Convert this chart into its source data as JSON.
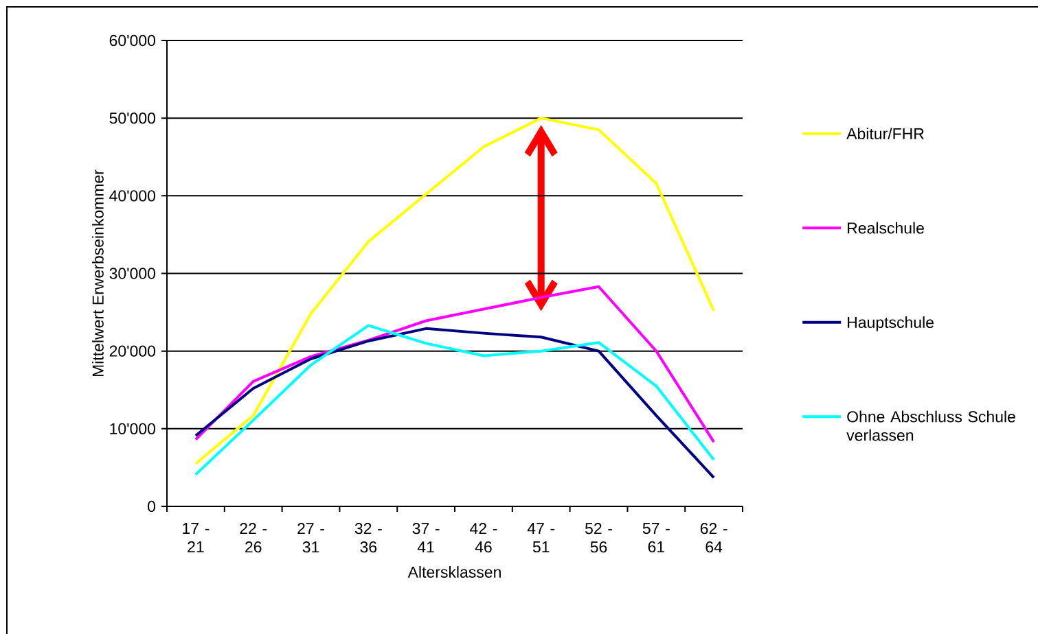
{
  "chart_data": {
    "type": "line",
    "xlabel": "Altersklassen",
    "ylabel": "Mittelwert Erwerbseinkommer",
    "categories": [
      "17 - 21",
      "22 - 26",
      "27 - 31",
      "32 - 36",
      "37 - 41",
      "42 - 46",
      "47 - 51",
      "52 - 56",
      "57 - 61",
      "62 - 64"
    ],
    "series": [
      {
        "name": "Abitur/FHR",
        "color": "#ffff00",
        "values": [
          5500,
          11700,
          24800,
          34100,
          40200,
          46300,
          50000,
          48500,
          41600,
          25200
        ]
      },
      {
        "name": "Realschule",
        "color": "#ff00ff",
        "values": [
          8600,
          16100,
          19300,
          21400,
          23900,
          25400,
          26900,
          28300,
          20000,
          8300
        ]
      },
      {
        "name": "Hauptschule",
        "color": "#000080",
        "values": [
          9100,
          15200,
          19000,
          21300,
          22900,
          22300,
          21800,
          20000,
          11700,
          3700
        ]
      },
      {
        "name": "Ohne Abschluss Schule verlassen",
        "color": "#00ffff",
        "values": [
          4100,
          11100,
          18200,
          23300,
          21000,
          19400,
          20000,
          21100,
          15500,
          6000
        ]
      }
    ],
    "ylim": [
      0,
      60000
    ],
    "yticks": [
      {
        "value": 0,
        "label": "0"
      },
      {
        "value": 10000,
        "label": "10'000"
      },
      {
        "value": 20000,
        "label": "20'000"
      },
      {
        "value": 30000,
        "label": "30'000"
      },
      {
        "value": 40000,
        "label": "40'000"
      },
      {
        "value": 50000,
        "label": "50'000"
      },
      {
        "value": 60000,
        "label": "60'000"
      }
    ],
    "grid": "y",
    "legend": "right",
    "marker": "none",
    "line_style": "solid"
  }
}
